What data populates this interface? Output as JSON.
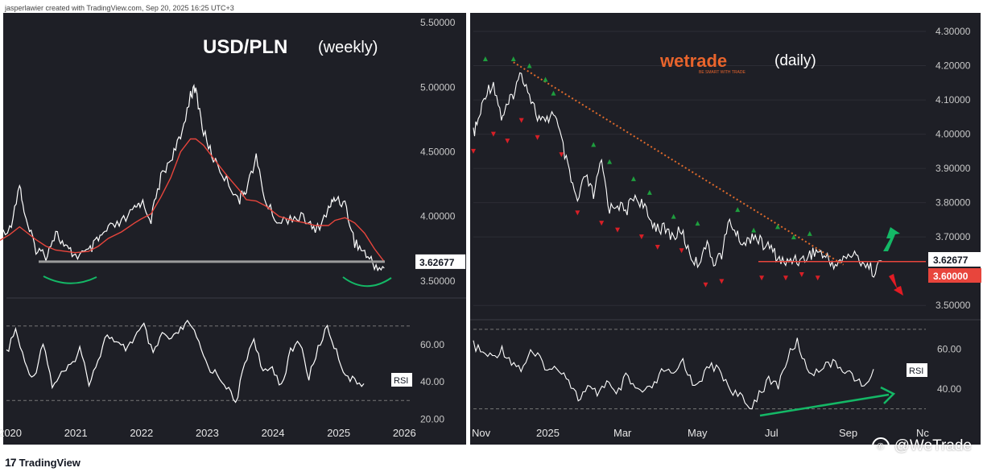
{
  "attribution": "jasperlawier created with TradingView.com, Sep 20, 2025 16:25 UTC+3",
  "footer": {
    "brand": "TradingView",
    "logo_glyph": "17"
  },
  "watermark": {
    "text": "@WeTrade",
    "icon": "wechat-icon"
  },
  "colors": {
    "panel_bg": "#1e1f26",
    "price_line": "#ffffff",
    "ma_line": "#e8453c",
    "support_line": "#9c9c9c",
    "support_line_daily": "#e8453c",
    "trend_line": "#e06a2b",
    "swing_high": "#1e9e3e",
    "swing_low": "#d81f26",
    "arc": "#14b866",
    "arrow_up": "#14b866",
    "arrow_down": "#e21b24",
    "rsi_arrow": "#14b866",
    "price_badge_bg": "#ffffff",
    "red_badge_bg": "#e8453c",
    "wetrade_orange": "#e8642c"
  },
  "chart_data": [
    {
      "type": "line",
      "symbol": "USD/PLN",
      "timeframe": "(weekly)",
      "y_axis": {
        "ticks": [
          "5.50000",
          "5.00000",
          "4.50000",
          "4.00000",
          "3.50000"
        ],
        "ylim": [
          3.45,
          5.55
        ]
      },
      "x_axis": {
        "ticks": [
          "2020",
          "2021",
          "2022",
          "2023",
          "2024",
          "2025",
          "2026"
        ]
      },
      "x": [
        2019.6,
        2019.8,
        2020.0,
        2020.15,
        2020.25,
        2020.4,
        2020.55,
        2020.7,
        2020.85,
        2021.0,
        2021.2,
        2021.35,
        2021.5,
        2021.7,
        2021.9,
        2022.0,
        2022.15,
        2022.3,
        2022.45,
        2022.6,
        2022.75,
        2022.83,
        2022.95,
        2023.1,
        2023.3,
        2023.5,
        2023.6,
        2023.75,
        2023.9,
        2024.1,
        2024.3,
        2024.5,
        2024.65,
        2024.85,
        2024.95,
        2025.1,
        2025.25,
        2025.4,
        2025.55,
        2025.7
      ],
      "close": [
        3.85,
        3.9,
        3.9,
        4.25,
        3.95,
        3.75,
        3.7,
        3.88,
        3.75,
        3.7,
        3.72,
        3.82,
        3.9,
        3.95,
        4.05,
        4.12,
        3.98,
        4.3,
        4.45,
        4.6,
        4.95,
        4.98,
        4.65,
        4.45,
        4.28,
        4.13,
        4.22,
        4.45,
        4.1,
        3.95,
        4.0,
        3.98,
        3.88,
        4.05,
        4.15,
        4.1,
        3.8,
        3.72,
        3.62,
        3.6
      ],
      "ma": [
        3.75,
        3.8,
        3.86,
        3.92,
        3.88,
        3.82,
        3.77,
        3.74,
        3.73,
        3.72,
        3.73,
        3.77,
        3.83,
        3.88,
        3.95,
        3.98,
        4.02,
        4.15,
        4.3,
        4.5,
        4.6,
        4.6,
        4.55,
        4.45,
        4.32,
        4.2,
        4.13,
        4.12,
        4.08,
        4.0,
        3.97,
        3.95,
        3.93,
        3.93,
        3.97,
        3.99,
        3.95,
        3.87,
        3.75,
        3.65
      ],
      "support_level": 3.65,
      "last_price_label": "3.62677",
      "rsi": {
        "label": "RSI",
        "ticks": [
          "60.00",
          "40.00",
          "20.00"
        ],
        "ylim": [
          18,
          82
        ],
        "levels": [
          70,
          30
        ],
        "values": [
          55,
          68,
          50,
          42,
          62,
          38,
          44,
          48,
          58,
          40,
          52,
          66,
          60,
          58,
          64,
          70,
          54,
          66,
          62,
          68,
          72,
          60,
          48,
          44,
          38,
          28,
          50,
          64,
          44,
          48,
          38,
          56,
          62,
          42,
          58,
          70,
          56,
          44,
          40,
          39
        ]
      }
    },
    {
      "type": "line",
      "symbol": "wetrade",
      "timeframe": "(daily)",
      "brand_sub": "BE SMART WITH TRADE",
      "y_axis": {
        "ticks": [
          "4.30000",
          "4.20000",
          "4.10000",
          "4.00000",
          "3.90000",
          "3.80000",
          "3.70000",
          "3.50000"
        ],
        "ylim": [
          3.47,
          4.34
        ]
      },
      "x_axis": {
        "ticks": [
          "Nov",
          "2025",
          "Mar",
          "May",
          "Jul",
          "Sep",
          "Nc"
        ]
      },
      "x": [
        0,
        0.15,
        0.3,
        0.5,
        0.7,
        0.85,
        1.0,
        1.2,
        1.4,
        1.6,
        1.8,
        2.0,
        2.2,
        2.4,
        2.6,
        2.8,
        3.0,
        3.2,
        3.4,
        3.6,
        3.8,
        4.0,
        4.2,
        4.4,
        4.6,
        4.8,
        5.0,
        5.2,
        5.4,
        5.6,
        5.8,
        6.0,
        6.2,
        6.4,
        6.6,
        6.8,
        7.0,
        7.2,
        7.4,
        7.6,
        7.8,
        8.0,
        8.2,
        8.4,
        8.6,
        8.8,
        9.0,
        9.2,
        9.4,
        9.6,
        9.8,
        10.0,
        10.2
      ],
      "close": [
        4.0,
        4.05,
        4.12,
        4.15,
        4.05,
        4.08,
        4.12,
        4.18,
        4.12,
        4.05,
        4.03,
        4.07,
        3.98,
        3.88,
        3.8,
        3.88,
        3.82,
        3.92,
        3.78,
        3.8,
        3.77,
        3.82,
        3.8,
        3.75,
        3.73,
        3.72,
        3.7,
        3.72,
        3.65,
        3.62,
        3.68,
        3.63,
        3.65,
        3.75,
        3.7,
        3.68,
        3.71,
        3.68,
        3.67,
        3.64,
        3.62,
        3.64,
        3.63,
        3.65,
        3.66,
        3.64,
        3.62,
        3.63,
        3.65,
        3.64,
        3.62,
        3.6,
        3.63
      ],
      "trendline": {
        "from": {
          "x": 1.0,
          "y": 4.21
        },
        "to": {
          "x": 9.0,
          "y": 3.64
        }
      },
      "support_level": 3.6,
      "swing_highs": [
        [
          0.3,
          4.22
        ],
        [
          1.0,
          4.22
        ],
        [
          1.4,
          4.2
        ],
        [
          1.8,
          4.16
        ],
        [
          2.0,
          4.12
        ],
        [
          3.0,
          3.97
        ],
        [
          3.4,
          3.92
        ],
        [
          4.0,
          3.87
        ],
        [
          4.4,
          3.83
        ],
        [
          5.0,
          3.76
        ],
        [
          5.6,
          3.74
        ],
        [
          6.6,
          3.78
        ],
        [
          7.0,
          3.72
        ],
        [
          7.6,
          3.73
        ],
        [
          8.0,
          3.7
        ],
        [
          8.4,
          3.71
        ]
      ],
      "swing_lows": [
        [
          0.0,
          3.95
        ],
        [
          0.5,
          4.0
        ],
        [
          0.85,
          3.98
        ],
        [
          1.2,
          4.04
        ],
        [
          1.6,
          3.99
        ],
        [
          2.2,
          3.94
        ],
        [
          2.6,
          3.77
        ],
        [
          3.2,
          3.74
        ],
        [
          3.6,
          3.72
        ],
        [
          4.2,
          3.7
        ],
        [
          4.6,
          3.67
        ],
        [
          5.2,
          3.66
        ],
        [
          5.8,
          3.56
        ],
        [
          6.2,
          3.57
        ],
        [
          7.2,
          3.58
        ],
        [
          7.8,
          3.58
        ],
        [
          8.2,
          3.59
        ],
        [
          8.6,
          3.58
        ]
      ],
      "last_price_label": "3.62677",
      "support_label": "3.60000",
      "rsi": {
        "label": "RSI",
        "ticks": [
          "60.00",
          "40.00"
        ],
        "ylim": [
          25,
          72
        ],
        "levels": [
          70,
          30
        ],
        "values": [
          62,
          58,
          56,
          60,
          54,
          50,
          58,
          55,
          49,
          51,
          45,
          35,
          40,
          38,
          44,
          36,
          46,
          40,
          38,
          42,
          50,
          46,
          55,
          42,
          46,
          52,
          48,
          40,
          36,
          30,
          38,
          44,
          42,
          56,
          64,
          50,
          48,
          54,
          52,
          50,
          46,
          40,
          50
        ],
        "divergence_arrow": {
          "from": {
            "x": 0.68,
            "y": 28
          },
          "to": {
            "x": 0.99,
            "y": 36
          }
        }
      }
    }
  ]
}
